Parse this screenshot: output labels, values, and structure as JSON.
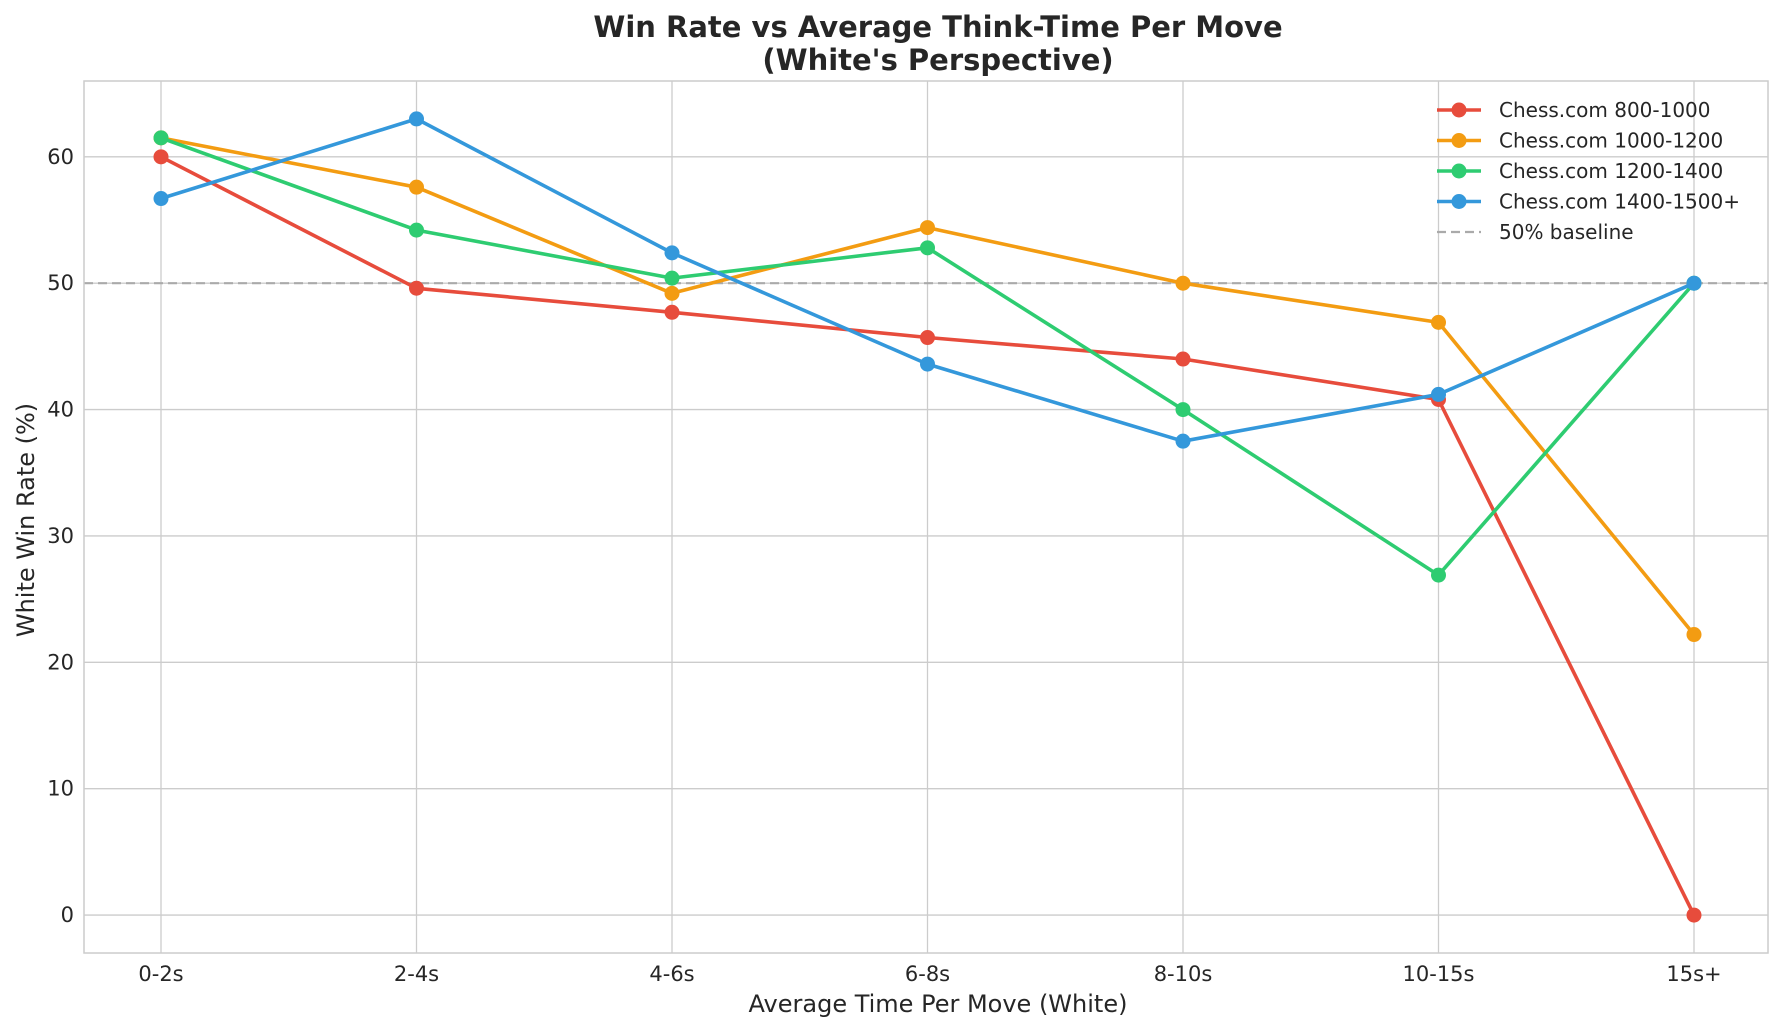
{
  "chart_data": {
    "type": "line",
    "title_line1": "Win Rate vs Average Think-Time Per Move",
    "title_line2": "(White's Perspective)",
    "xlabel": "Average Time Per Move (White)",
    "ylabel": "White Win Rate (%)",
    "categories": [
      "0-2s",
      "2-4s",
      "4-6s",
      "6-8s",
      "8-10s",
      "10-15s",
      "15s+"
    ],
    "ylim": [
      -3,
      66
    ],
    "yticks": [
      0,
      10,
      20,
      30,
      40,
      50,
      60
    ],
    "grid": true,
    "legend_position": "top-right",
    "baseline": {
      "name": "50% baseline",
      "value": 50,
      "color": "#aaaaaa",
      "style": "dashed"
    },
    "series": [
      {
        "name": "Chess.com 800-1000",
        "color": "#e74c3c",
        "values": [
          60.0,
          49.6,
          47.7,
          45.7,
          44.0,
          40.8,
          0.0
        ]
      },
      {
        "name": "Chess.com 1000-1200",
        "color": "#f39c12",
        "values": [
          61.5,
          57.6,
          49.2,
          54.4,
          50.0,
          46.9,
          22.2
        ]
      },
      {
        "name": "Chess.com 1200-1400",
        "color": "#2ecc71",
        "values": [
          61.5,
          54.2,
          50.4,
          52.8,
          40.0,
          26.9,
          50.0
        ]
      },
      {
        "name": "Chess.com 1400-1500+",
        "color": "#3498db",
        "values": [
          56.7,
          63.0,
          52.4,
          43.6,
          37.5,
          41.2,
          50.0
        ]
      }
    ]
  }
}
